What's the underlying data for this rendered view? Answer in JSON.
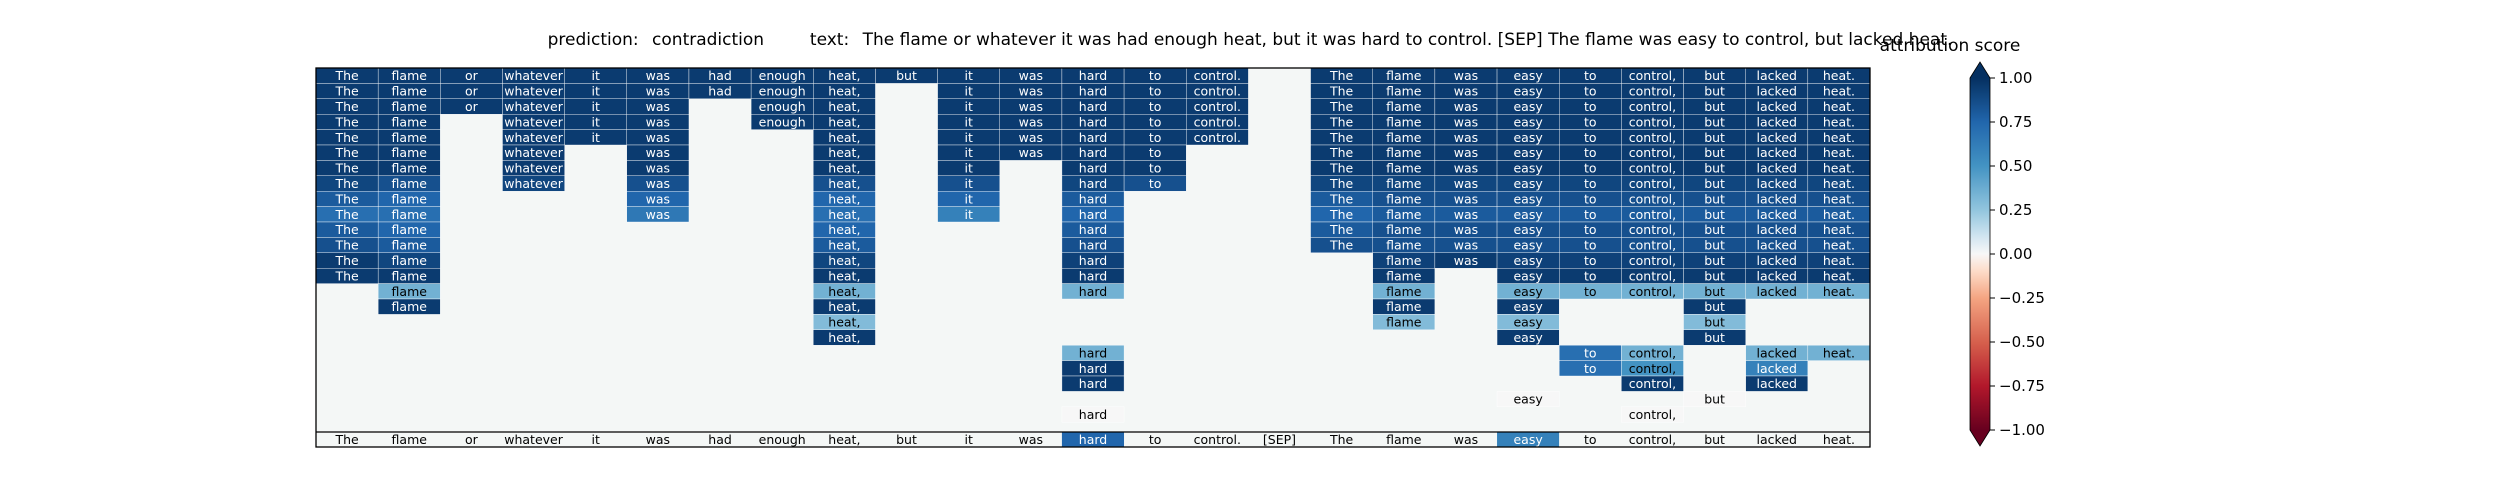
{
  "header": {
    "prediction_label": "prediction:",
    "prediction_value": "contradiction",
    "text_label": "text:",
    "text_value": "The flame or whatever it was had enough heat, but it was hard to control. [SEP] The flame was easy to control, but lacked heat."
  },
  "chart_data": {
    "type": "heatmap",
    "tokens": [
      "The",
      "flame",
      "or",
      "whatever",
      "it",
      "was",
      "had",
      "enough",
      "heat,",
      "but",
      "it",
      "was",
      "hard",
      "to",
      "control.",
      "[SEP]",
      "The",
      "flame",
      "was",
      "easy",
      "to",
      "control,",
      "but",
      "lacked",
      "heat."
    ],
    "rows": [
      [
        0.95,
        0.95,
        0.95,
        0.95,
        0.95,
        0.95,
        0.95,
        0.95,
        0.95,
        0.95,
        0.95,
        0.95,
        0.95,
        0.95,
        0.95,
        null,
        0.95,
        0.95,
        0.95,
        0.95,
        0.95,
        0.95,
        0.95,
        0.95,
        0.95
      ],
      [
        0.95,
        0.95,
        0.95,
        0.95,
        0.95,
        0.95,
        0.95,
        0.95,
        0.95,
        null,
        0.95,
        0.95,
        0.95,
        0.95,
        0.95,
        null,
        0.95,
        0.95,
        0.95,
        0.95,
        0.95,
        0.95,
        0.95,
        0.95,
        0.95
      ],
      [
        0.95,
        0.95,
        0.95,
        0.95,
        0.95,
        0.95,
        null,
        0.95,
        0.95,
        null,
        0.95,
        0.95,
        0.95,
        0.95,
        0.95,
        null,
        0.95,
        0.95,
        0.95,
        0.95,
        0.95,
        0.95,
        0.95,
        0.95,
        0.95
      ],
      [
        0.95,
        0.95,
        null,
        0.95,
        0.95,
        0.95,
        null,
        0.95,
        0.95,
        null,
        0.95,
        0.95,
        0.95,
        0.95,
        0.95,
        null,
        0.95,
        0.95,
        0.95,
        0.95,
        0.95,
        0.95,
        0.95,
        0.95,
        0.95
      ],
      [
        0.95,
        0.95,
        null,
        0.95,
        0.95,
        0.95,
        null,
        null,
        0.95,
        null,
        0.95,
        0.95,
        0.95,
        0.95,
        0.95,
        null,
        0.95,
        0.95,
        0.95,
        0.95,
        0.95,
        0.95,
        0.95,
        0.95,
        0.95
      ],
      [
        0.95,
        0.95,
        null,
        0.95,
        null,
        0.95,
        null,
        null,
        0.95,
        null,
        0.95,
        0.95,
        0.95,
        0.95,
        null,
        null,
        0.95,
        0.95,
        0.95,
        0.95,
        0.95,
        0.95,
        0.95,
        0.95,
        0.95
      ],
      [
        0.95,
        0.95,
        null,
        0.95,
        null,
        0.95,
        null,
        null,
        0.95,
        null,
        0.95,
        null,
        0.95,
        0.95,
        null,
        null,
        0.95,
        0.95,
        0.95,
        0.95,
        0.95,
        0.95,
        0.95,
        0.95,
        0.95
      ],
      [
        0.9,
        0.85,
        null,
        0.9,
        null,
        0.85,
        null,
        null,
        0.85,
        null,
        0.85,
        null,
        0.9,
        0.85,
        null,
        null,
        0.9,
        0.9,
        0.9,
        0.9,
        0.9,
        0.9,
        0.9,
        0.9,
        0.9
      ],
      [
        0.8,
        0.75,
        null,
        null,
        null,
        0.75,
        null,
        null,
        0.75,
        null,
        0.75,
        null,
        0.8,
        null,
        null,
        null,
        0.8,
        0.85,
        0.85,
        0.85,
        0.85,
        0.85,
        0.85,
        0.85,
        0.85
      ],
      [
        0.7,
        0.7,
        null,
        null,
        null,
        0.65,
        null,
        null,
        0.7,
        null,
        0.6,
        null,
        0.75,
        null,
        null,
        null,
        0.75,
        0.8,
        0.8,
        0.8,
        0.8,
        0.8,
        0.8,
        0.8,
        0.8
      ],
      [
        0.8,
        0.75,
        null,
        null,
        null,
        null,
        null,
        null,
        0.75,
        null,
        null,
        null,
        0.8,
        null,
        null,
        null,
        0.8,
        0.85,
        0.85,
        0.85,
        0.85,
        0.85,
        0.85,
        0.85,
        0.85
      ],
      [
        0.85,
        0.8,
        null,
        null,
        null,
        null,
        null,
        null,
        0.8,
        null,
        null,
        null,
        0.85,
        null,
        null,
        null,
        0.85,
        0.85,
        0.85,
        0.85,
        0.85,
        0.85,
        0.85,
        0.85,
        0.85
      ],
      [
        0.95,
        0.9,
        null,
        null,
        null,
        null,
        null,
        null,
        0.9,
        null,
        null,
        null,
        0.92,
        null,
        null,
        null,
        null,
        0.92,
        0.95,
        0.92,
        0.92,
        0.92,
        0.92,
        0.92,
        0.92
      ],
      [
        0.95,
        0.95,
        null,
        null,
        null,
        null,
        null,
        null,
        0.95,
        null,
        null,
        null,
        0.95,
        null,
        null,
        null,
        null,
        0.95,
        null,
        0.95,
        0.95,
        0.95,
        0.95,
        0.95,
        0.95
      ],
      [
        null,
        0.35,
        null,
        null,
        null,
        null,
        null,
        null,
        0.35,
        null,
        null,
        null,
        0.35,
        null,
        null,
        null,
        null,
        0.35,
        null,
        0.35,
        0.35,
        0.35,
        0.35,
        0.35,
        0.35
      ],
      [
        null,
        0.95,
        null,
        null,
        null,
        null,
        null,
        null,
        0.95,
        null,
        null,
        null,
        null,
        null,
        null,
        null,
        null,
        0.95,
        null,
        0.95,
        null,
        null,
        0.95,
        null,
        null
      ],
      [
        null,
        null,
        null,
        null,
        null,
        null,
        null,
        null,
        0.3,
        null,
        null,
        null,
        null,
        null,
        null,
        null,
        null,
        0.3,
        null,
        0.3,
        null,
        null,
        0.3,
        null,
        null
      ],
      [
        null,
        null,
        null,
        null,
        null,
        null,
        null,
        null,
        0.95,
        null,
        null,
        null,
        null,
        null,
        null,
        null,
        null,
        null,
        null,
        0.95,
        null,
        null,
        0.95,
        null,
        null
      ],
      [
        null,
        null,
        null,
        null,
        null,
        null,
        null,
        null,
        null,
        null,
        null,
        null,
        0.35,
        null,
        null,
        null,
        null,
        null,
        null,
        null,
        0.7,
        0.35,
        null,
        0.35,
        0.35
      ],
      [
        null,
        null,
        null,
        null,
        null,
        null,
        null,
        null,
        null,
        null,
        null,
        null,
        0.95,
        null,
        null,
        null,
        null,
        null,
        null,
        null,
        0.7,
        0.5,
        null,
        0.6,
        null
      ],
      [
        null,
        null,
        null,
        null,
        null,
        null,
        null,
        null,
        null,
        null,
        null,
        null,
        0.95,
        null,
        null,
        null,
        null,
        null,
        null,
        null,
        null,
        0.95,
        null,
        0.95,
        null
      ],
      [
        null,
        null,
        null,
        null,
        null,
        null,
        null,
        null,
        null,
        null,
        null,
        null,
        null,
        null,
        null,
        null,
        null,
        null,
        null,
        0.0,
        null,
        null,
        0.0,
        null,
        null
      ],
      [
        null,
        null,
        null,
        null,
        null,
        null,
        null,
        null,
        null,
        null,
        null,
        null,
        0.0,
        null,
        null,
        null,
        null,
        null,
        null,
        null,
        null,
        0.0,
        null,
        null,
        null
      ]
    ],
    "final_row": [
      0,
      0,
      0,
      0,
      0,
      0,
      0,
      0,
      0,
      0,
      0,
      0,
      0.75,
      0,
      0,
      0,
      0,
      0,
      0,
      0.6,
      0,
      0,
      0,
      0,
      0
    ],
    "colorbar": {
      "title": "attribution score",
      "ticks": [
        1.0,
        0.75,
        0.5,
        0.25,
        0.0,
        -0.25,
        -0.5,
        -0.75,
        -1.0
      ],
      "tick_labels": [
        "1.00",
        "0.75",
        "0.50",
        "0.25",
        "0.00",
        "−0.25",
        "−0.50",
        "−0.75",
        "−1.00"
      ],
      "range": [
        -1.0,
        1.0
      ],
      "colormap": "RdBu"
    },
    "background_color": "#f4f7f6"
  }
}
